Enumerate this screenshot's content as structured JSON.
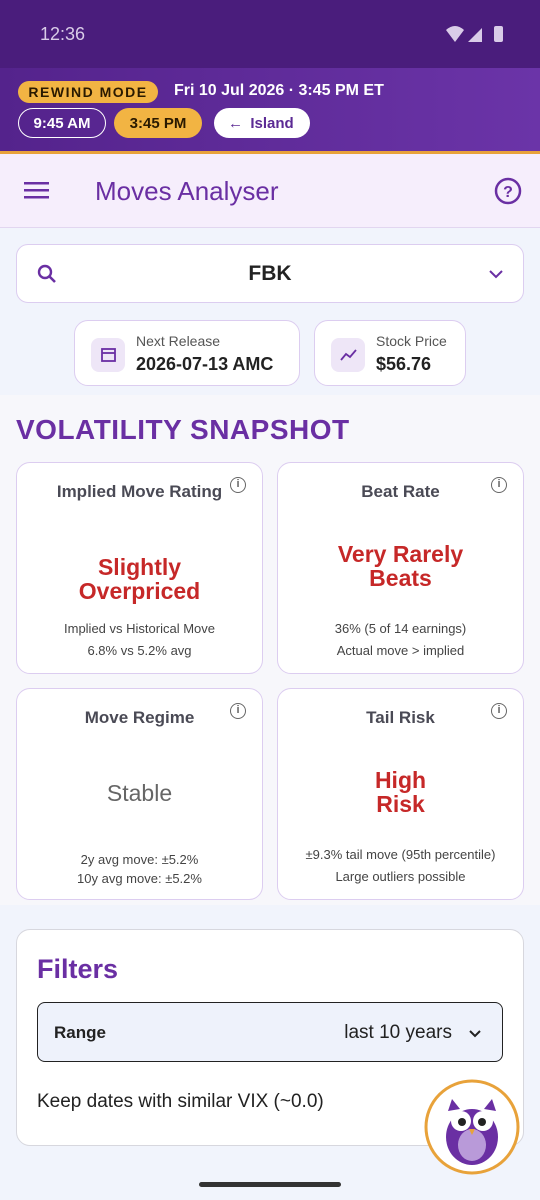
{
  "status_bar": {
    "time": "12:36"
  },
  "banner": {
    "mode": "REWIND MODE",
    "datetime": "Fri 10 Jul 2026 · 3:45 PM ET",
    "times": [
      "9:45 AM",
      "3:45 PM"
    ],
    "back": "Island"
  },
  "app_bar": {
    "title": "Moves Analyser"
  },
  "search": {
    "ticker": "FBK"
  },
  "info_cards": [
    {
      "label": "Next Release",
      "value": "2026-07-13 AMC"
    },
    {
      "label": "Stock Price",
      "value": "$56.76"
    }
  ],
  "section_title": "VOLATILITY SNAPSHOT",
  "cards": [
    {
      "title": "Implied Move Rating",
      "verdict": "Slightly Overpriced",
      "details": [
        "Implied vs Historical Move",
        "6.8% vs 5.2% avg"
      ]
    },
    {
      "title": "Beat Rate",
      "verdict": "Very Rarely Beats",
      "details": [
        "36% (5 of 14 earnings)",
        "Actual move > implied"
      ]
    },
    {
      "title": "Move Regime",
      "verdict": "Stable",
      "details": [
        "2y avg move: ±5.2%",
        "10y avg move: ±5.2%"
      ]
    },
    {
      "title": "Tail Risk",
      "verdict": "High Risk",
      "details": [
        "±9.3% tail move (95th percentile)",
        "Large outliers possible"
      ]
    }
  ],
  "filters": {
    "title": "Filters",
    "range_label": "Range",
    "range_value": "last 10 years",
    "vix_text": "Keep dates with similar VIX (~0.0)"
  }
}
